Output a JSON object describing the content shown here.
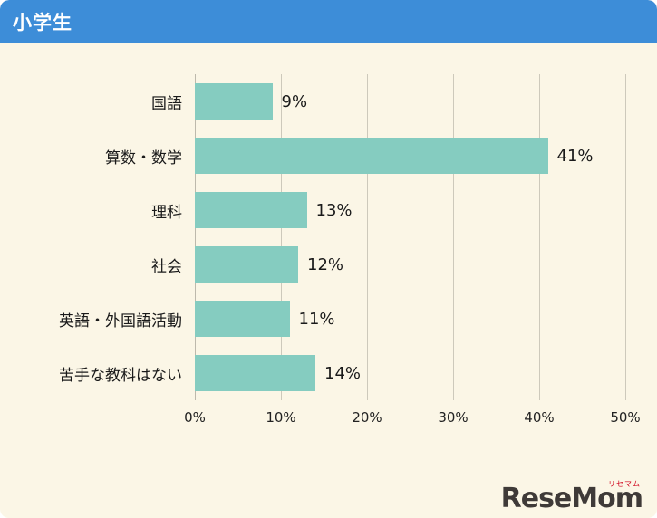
{
  "header": {
    "title": "小学生"
  },
  "colors": {
    "header_bg": "#3D8DD8",
    "background": "#FBF6E6",
    "bar": "#85CCC0",
    "logo_accent": "#D0021B"
  },
  "logo": {
    "text": "ReseMom",
    "kana": "リセマム"
  },
  "chart_data": {
    "type": "bar",
    "orientation": "horizontal",
    "title": "小学生",
    "categories": [
      "国語",
      "算数・数学",
      "理科",
      "社会",
      "英語・外国語活動",
      "苦手な教科はない"
    ],
    "values": [
      9,
      41,
      13,
      12,
      11,
      14
    ],
    "value_suffix": "%",
    "xlim": [
      0,
      50
    ],
    "ticks": [
      0,
      10,
      20,
      30,
      40,
      50
    ],
    "tick_labels": [
      "0%",
      "10%",
      "20%",
      "30%",
      "40%",
      "50%"
    ],
    "grid": true,
    "legend": false
  }
}
